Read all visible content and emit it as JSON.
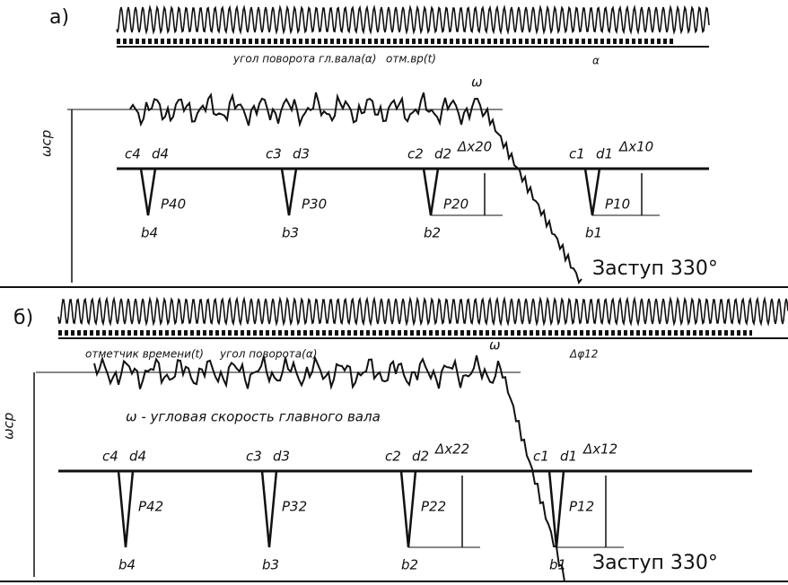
{
  "panels": [
    {
      "label": "а)",
      "angle_label": "угол поворота гл.вала(α)",
      "time_label": "отм.вр(t)",
      "alpha": "α",
      "omega": "ω",
      "omega_avg": "ωср",
      "dips": [
        {
          "c": "c4",
          "d": "d4",
          "p": "P40",
          "b": "b4"
        },
        {
          "c": "c3",
          "d": "d3",
          "p": "P30",
          "b": "b3"
        },
        {
          "c": "c2",
          "d": "d2",
          "p": "P20",
          "b": "b2"
        },
        {
          "c": "c1",
          "d": "d1",
          "p": "P10",
          "b": "b1"
        }
      ],
      "dx": [
        "Δx20",
        "Δx10"
      ],
      "step": "Заступ 330°"
    },
    {
      "label": "б)",
      "angle_label": "угол поворота(α)",
      "time_label": "отметчик времени(t)",
      "alpha": "Δφ12",
      "omega": "ω",
      "omega_avg": "ωср",
      "omega_caption": "ω - угловая скорость главного вала",
      "dips": [
        {
          "c": "c4",
          "d": "d4",
          "p": "P42",
          "b": "b4"
        },
        {
          "c": "c3",
          "d": "d3",
          "p": "P32",
          "b": "b3"
        },
        {
          "c": "c2",
          "d": "d2",
          "p": "P22",
          "b": "b2"
        },
        {
          "c": "c1",
          "d": "d1",
          "p": "P12",
          "b": "b1"
        }
      ],
      "dx": [
        "Δx22",
        "Δx12"
      ],
      "step": "Заступ 330°"
    }
  ]
}
